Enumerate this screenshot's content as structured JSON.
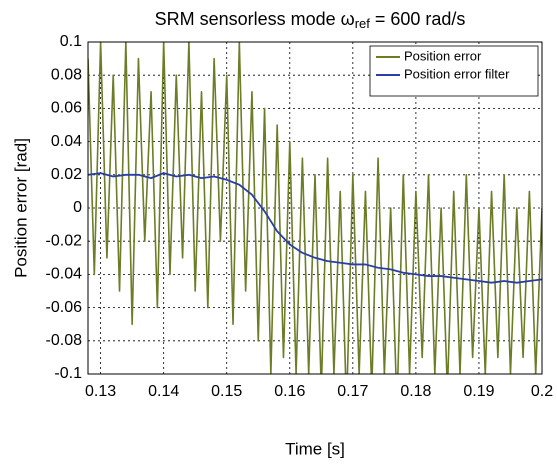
{
  "chart_data": {
    "type": "line",
    "title": {
      "main": "SRM sensorless mode ω",
      "sub": "ref",
      "end": " = 600 rad/s"
    },
    "x_label": "Time [s]",
    "y_label": "Position error [rad]",
    "xlim": [
      0.128,
      0.2
    ],
    "xticks": [
      0.13,
      0.14,
      0.15,
      0.16,
      0.17,
      0.18,
      0.19,
      0.2
    ],
    "ylim": [
      -0.1,
      0.1
    ],
    "yticks": [
      0.1,
      0.08,
      0.06,
      0.04,
      0.02,
      0,
      -0.02,
      -0.04,
      -0.06,
      -0.08,
      -0.1
    ],
    "grid": true,
    "legend": "upper right",
    "series": [
      {
        "name": "Position error",
        "color": "#6b7d26",
        "x": [
          0.128,
          0.129,
          0.13,
          0.131,
          0.132,
          0.133,
          0.134,
          0.135,
          0.136,
          0.137,
          0.138,
          0.139,
          0.14,
          0.141,
          0.142,
          0.143,
          0.144,
          0.145,
          0.146,
          0.147,
          0.148,
          0.149,
          0.15,
          0.151,
          0.152,
          0.153,
          0.154,
          0.155,
          0.156,
          0.157,
          0.158,
          0.159,
          0.16,
          0.161,
          0.162,
          0.163,
          0.164,
          0.165,
          0.166,
          0.167,
          0.168,
          0.169,
          0.17,
          0.171,
          0.172,
          0.173,
          0.174,
          0.175,
          0.176,
          0.177,
          0.178,
          0.179,
          0.18,
          0.181,
          0.182,
          0.183,
          0.184,
          0.185,
          0.186,
          0.187,
          0.188,
          0.189,
          0.19,
          0.191,
          0.192,
          0.193,
          0.194,
          0.195,
          0.196,
          0.197,
          0.198,
          0.199,
          0.2
        ],
        "values": [
          0.09,
          -0.04,
          0.1,
          -0.03,
          0.08,
          -0.05,
          0.1,
          -0.07,
          0.09,
          -0.02,
          0.07,
          -0.06,
          0.1,
          -0.04,
          0.08,
          -0.03,
          0.1,
          -0.05,
          0.07,
          -0.06,
          0.09,
          -0.02,
          0.08,
          -0.07,
          0.1,
          -0.05,
          0.07,
          -0.08,
          0.06,
          -0.1,
          0.05,
          -0.09,
          0.04,
          -0.1,
          0.03,
          -0.1,
          0.02,
          -0.11,
          0.03,
          -0.1,
          0.01,
          -0.12,
          0.02,
          -0.1,
          0.01,
          -0.11,
          0.03,
          -0.1,
          0,
          -0.12,
          0.02,
          -0.1,
          0.01,
          -0.09,
          0.02,
          -0.1,
          0,
          -0.11,
          0.01,
          -0.1,
          0.02,
          -0.09,
          0,
          -0.1,
          0.01,
          -0.09,
          0.02,
          -0.1,
          0,
          -0.09,
          0.01,
          -0.1,
          0
        ]
      },
      {
        "name": "Position error filter",
        "color": "#2a3ea6",
        "x": [
          0.128,
          0.13,
          0.132,
          0.134,
          0.136,
          0.138,
          0.14,
          0.142,
          0.144,
          0.146,
          0.148,
          0.15,
          0.152,
          0.154,
          0.156,
          0.158,
          0.16,
          0.162,
          0.164,
          0.166,
          0.168,
          0.17,
          0.172,
          0.174,
          0.176,
          0.178,
          0.18,
          0.182,
          0.184,
          0.186,
          0.188,
          0.19,
          0.192,
          0.194,
          0.196,
          0.198,
          0.2
        ],
        "values": [
          0.02,
          0.021,
          0.019,
          0.02,
          0.02,
          0.018,
          0.021,
          0.019,
          0.02,
          0.018,
          0.019,
          0.017,
          0.014,
          0.008,
          -0.002,
          -0.014,
          -0.022,
          -0.027,
          -0.03,
          -0.032,
          -0.033,
          -0.034,
          -0.034,
          -0.036,
          -0.037,
          -0.039,
          -0.04,
          -0.041,
          -0.041,
          -0.042,
          -0.043,
          -0.044,
          -0.045,
          -0.044,
          -0.045,
          -0.044,
          -0.043
        ]
      }
    ]
  }
}
